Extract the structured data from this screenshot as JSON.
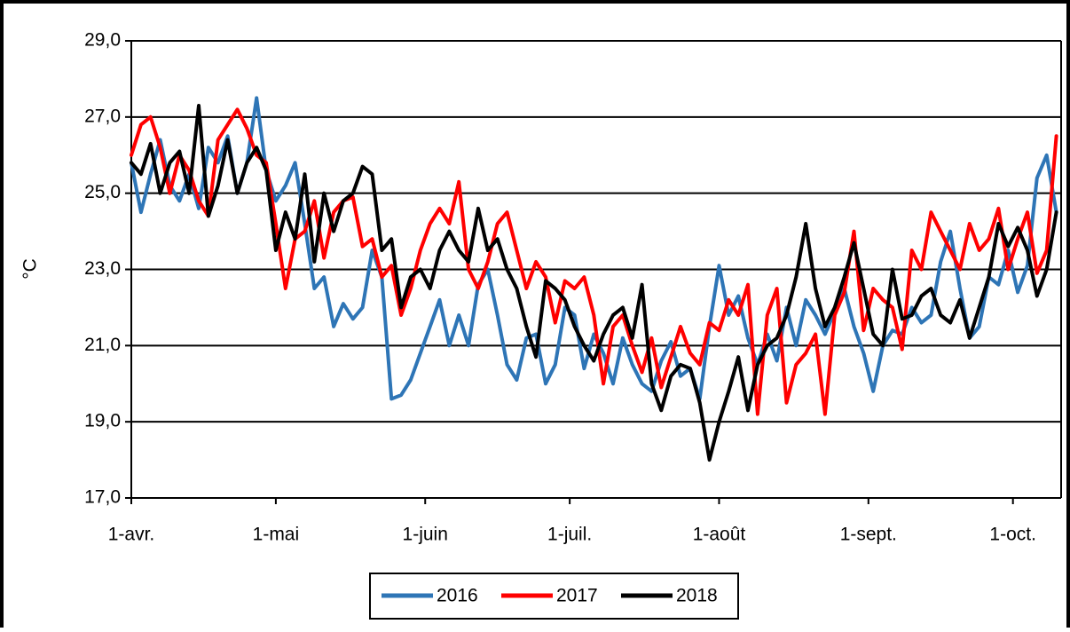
{
  "chart_data": {
    "type": "line",
    "y_label": "°C",
    "x": [
      0,
      2,
      4,
      6,
      8,
      10,
      12,
      14,
      16,
      18,
      20,
      22,
      24,
      26,
      28,
      30,
      32,
      34,
      36,
      38,
      40,
      42,
      44,
      46,
      48,
      50,
      52,
      54,
      56,
      58,
      60,
      62,
      64,
      66,
      68,
      70,
      72,
      74,
      76,
      78,
      80,
      82,
      84,
      86,
      88,
      90,
      92,
      94,
      96,
      98,
      100,
      102,
      104,
      106,
      108,
      110,
      112,
      114,
      116,
      118,
      120,
      122,
      124,
      126,
      128,
      130,
      132,
      134,
      136,
      138,
      140,
      142,
      144,
      146,
      148,
      150,
      152,
      154,
      156,
      158,
      160,
      162,
      164,
      166,
      168,
      170,
      172,
      174,
      176,
      178,
      180,
      182,
      184,
      186,
      188,
      190,
      192
    ],
    "xlim": [
      0,
      193
    ],
    "xticks": [
      {
        "value": 0,
        "label": "1-avr."
      },
      {
        "value": 30,
        "label": "1-mai"
      },
      {
        "value": 61,
        "label": "1-juin"
      },
      {
        "value": 91,
        "label": "1-juil."
      },
      {
        "value": 122,
        "label": "1-août"
      },
      {
        "value": 153,
        "label": "1-sept."
      },
      {
        "value": 183,
        "label": "1-oct."
      }
    ],
    "ylim": [
      17,
      29
    ],
    "yticks": [
      {
        "value": 17,
        "label": "17,0"
      },
      {
        "value": 19,
        "label": "19,0"
      },
      {
        "value": 21,
        "label": "21,0"
      },
      {
        "value": 23,
        "label": "23,0"
      },
      {
        "value": 25,
        "label": "25,0"
      },
      {
        "value": 27,
        "label": "27,0"
      },
      {
        "value": 29,
        "label": "29,0"
      }
    ],
    "grid": true,
    "legend": "bottom",
    "series": [
      {
        "name": "2016",
        "color": "#2e75b6",
        "values": [
          25.8,
          24.5,
          25.5,
          26.4,
          25.2,
          24.8,
          25.5,
          24.6,
          26.2,
          25.8,
          26.5,
          25.0,
          25.8,
          27.5,
          25.6,
          24.8,
          25.2,
          25.8,
          24.2,
          22.5,
          22.8,
          21.5,
          22.1,
          21.7,
          22.0,
          23.5,
          22.8,
          19.6,
          19.7,
          20.1,
          20.8,
          21.5,
          22.2,
          21.0,
          21.8,
          21.0,
          22.6,
          23.0,
          21.8,
          20.5,
          20.1,
          21.2,
          21.3,
          20.0,
          20.5,
          22.0,
          21.8,
          20.4,
          21.3,
          20.8,
          20.0,
          21.2,
          20.5,
          20.0,
          19.8,
          20.6,
          21.1,
          20.2,
          20.4,
          19.6,
          21.5,
          23.1,
          21.8,
          22.3,
          21.2,
          20.5,
          21.3,
          20.6,
          22.0,
          21.0,
          22.2,
          21.8,
          21.3,
          21.9,
          22.5,
          21.5,
          20.8,
          19.8,
          21.0,
          21.4,
          21.3,
          22.0,
          21.6,
          21.8,
          23.2,
          24.0,
          22.5,
          21.2,
          21.5,
          22.8,
          22.6,
          23.5,
          22.4,
          23.1,
          25.4,
          26.0,
          24.5
        ]
      },
      {
        "name": "2017",
        "color": "#ff0000",
        "values": [
          26.0,
          26.8,
          27.0,
          26.2,
          25.0,
          26.0,
          25.6,
          24.8,
          24.4,
          26.4,
          26.8,
          27.2,
          26.7,
          26.0,
          25.8,
          24.2,
          22.5,
          23.8,
          24.0,
          24.8,
          23.3,
          24.5,
          24.8,
          24.9,
          23.6,
          23.8,
          22.8,
          23.1,
          21.8,
          22.5,
          23.5,
          24.2,
          24.6,
          24.2,
          25.3,
          23.0,
          22.5,
          23.2,
          24.2,
          24.5,
          23.5,
          22.5,
          23.2,
          22.8,
          21.6,
          22.7,
          22.5,
          22.8,
          21.8,
          20.0,
          21.5,
          21.8,
          21.0,
          20.3,
          21.2,
          19.9,
          20.7,
          21.5,
          20.8,
          20.5,
          21.6,
          21.4,
          22.2,
          21.8,
          22.6,
          19.2,
          21.8,
          22.5,
          19.5,
          20.5,
          20.8,
          21.3,
          19.2,
          21.8,
          22.4,
          24.0,
          21.4,
          22.5,
          22.2,
          22.0,
          20.9,
          23.5,
          23.0,
          24.5,
          24.0,
          23.5,
          23.0,
          24.2,
          23.5,
          23.8,
          24.6,
          23.0,
          23.8,
          24.5,
          22.9,
          23.5,
          26.5
        ]
      },
      {
        "name": "2018",
        "color": "#000000",
        "values": [
          25.8,
          25.5,
          26.3,
          25.0,
          25.8,
          26.1,
          25.0,
          27.3,
          24.4,
          25.2,
          26.4,
          25.0,
          25.8,
          26.2,
          25.6,
          23.5,
          24.5,
          23.8,
          25.5,
          23.2,
          25.0,
          24.0,
          24.8,
          25.0,
          25.7,
          25.5,
          23.5,
          23.8,
          22.0,
          22.8,
          23.0,
          22.5,
          23.5,
          24.0,
          23.5,
          23.2,
          24.6,
          23.5,
          23.8,
          23.0,
          22.5,
          21.5,
          20.7,
          22.7,
          22.5,
          22.2,
          21.5,
          21.0,
          20.6,
          21.3,
          21.8,
          22.0,
          21.2,
          22.6,
          20.0,
          19.3,
          20.2,
          20.5,
          20.4,
          19.5,
          18.0,
          19.0,
          19.8,
          20.7,
          19.3,
          20.5,
          21.0,
          21.2,
          21.8,
          22.8,
          24.2,
          22.5,
          21.5,
          22.0,
          22.8,
          23.7,
          22.5,
          21.3,
          21.0,
          23.0,
          21.7,
          21.8,
          22.3,
          22.5,
          21.8,
          21.6,
          22.2,
          21.2,
          22.0,
          22.8,
          24.2,
          23.6,
          24.1,
          23.5,
          22.3,
          23.0,
          24.5
        ]
      }
    ]
  }
}
